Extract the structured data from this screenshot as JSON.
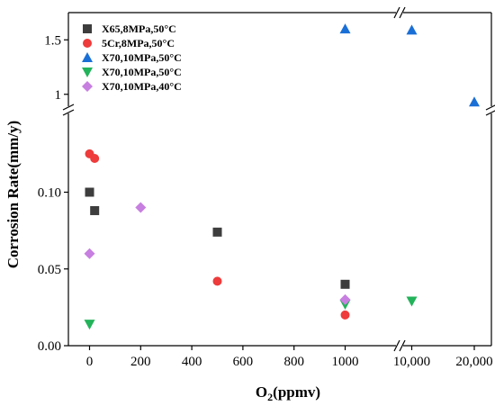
{
  "chart_data": {
    "type": "scatter",
    "title": "",
    "xlabel_main": "O",
    "xlabel_sub": "2",
    "xlabel_unit": "(ppmv)",
    "ylabel": "Corrosion Rate(mm/y)",
    "x_axis": {
      "broken": true,
      "segment_linear": {
        "range": [
          -100,
          1000
        ],
        "ticks": [
          0,
          200,
          400,
          600,
          800,
          1000
        ],
        "tick_labels": [
          "0",
          "200",
          "400",
          "600",
          "800",
          "1000"
        ]
      },
      "segment_categorical": {
        "ticks": [
          10000,
          20000
        ],
        "tick_labels": [
          "10,000",
          "20,000"
        ]
      }
    },
    "y_axis": {
      "broken": true,
      "lower_range": [
        0,
        0.13
      ],
      "lower_ticks": [
        0.0,
        0.05,
        0.1
      ],
      "lower_tick_labels": [
        "0.00",
        "0.05",
        "0.10"
      ],
      "upper_range": [
        0.75,
        1.75
      ],
      "upper_ticks": [
        1.0,
        1.5
      ],
      "upper_tick_labels": [
        "1",
        "1.5"
      ]
    },
    "legend_position": "top-left",
    "series": [
      {
        "name": "X65,8MPa,50°C",
        "marker": "square",
        "color": "#3d3d3d",
        "points": [
          {
            "x": 0,
            "y": 0.1
          },
          {
            "x": 20,
            "y": 0.088
          },
          {
            "x": 500,
            "y": 0.074
          },
          {
            "x": 1000,
            "y": 0.04
          }
        ]
      },
      {
        "name": "5Cr,8MPa,50°C",
        "marker": "circle",
        "color": "#ee3b3b",
        "points": [
          {
            "x": 0,
            "y": 0.125
          },
          {
            "x": 20,
            "y": 0.122
          },
          {
            "x": 500,
            "y": 0.042
          },
          {
            "x": 1000,
            "y": 0.02
          }
        ]
      },
      {
        "name": "X70,10MPa,50°C",
        "marker": "triangle-up",
        "color": "#1a6fd6",
        "points": [
          {
            "x": 1000,
            "y": 1.6
          },
          {
            "x": 10000,
            "y": 1.59
          },
          {
            "x": 20000,
            "y": 0.93
          }
        ]
      },
      {
        "name": "X70,10MPa,50°C",
        "marker": "triangle-down",
        "color": "#23b35a",
        "points": [
          {
            "x": 0,
            "y": 0.014
          },
          {
            "x": 1000,
            "y": 0.027
          },
          {
            "x": 10000,
            "y": 0.029
          }
        ]
      },
      {
        "name": "X70,10MPa,40°C",
        "marker": "diamond",
        "color": "#c77fe0",
        "points": [
          {
            "x": 0,
            "y": 0.06
          },
          {
            "x": 200,
            "y": 0.09
          },
          {
            "x": 1000,
            "y": 0.03
          }
        ]
      }
    ]
  }
}
